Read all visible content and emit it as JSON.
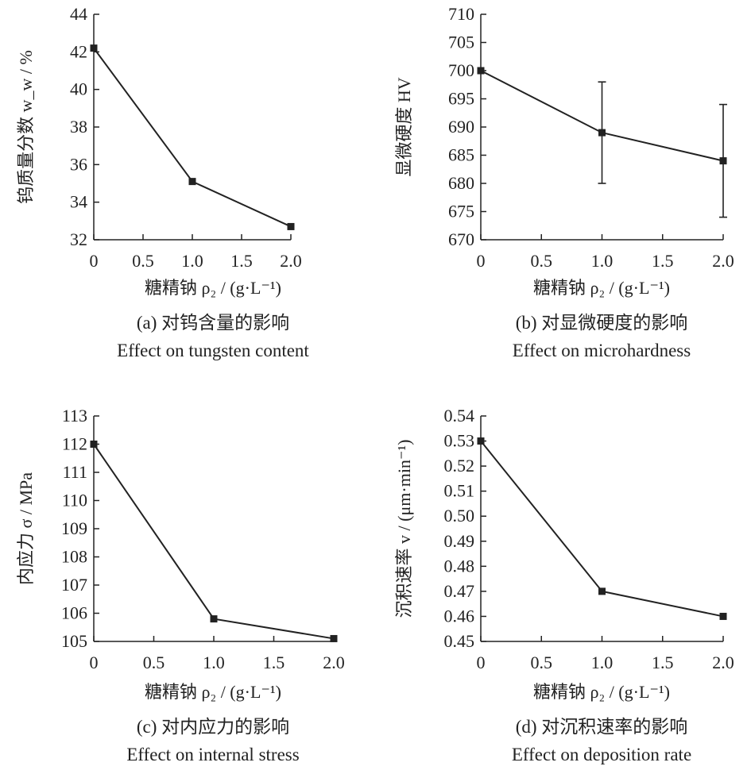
{
  "chart_data": [
    {
      "type": "line",
      "x": [
        0,
        1.0,
        2.0
      ],
      "values": [
        42.2,
        35.1,
        32.7
      ],
      "xlim": [
        0,
        2.0
      ],
      "ylim": [
        32,
        44
      ],
      "xticks": [
        "0",
        "0.5",
        "1.0",
        "1.5",
        "2.0"
      ],
      "yticks": [
        "32",
        "34",
        "36",
        "38",
        "40",
        "42",
        "44"
      ],
      "xlabel": "糖精钠 ρ₂ / (g·L⁻¹)",
      "ylabel": "钨质量分数 w_w / %",
      "caption_cn": "(a) 对钨含量的影响",
      "caption_en": "Effect on tungsten content",
      "grid": false
    },
    {
      "type": "line",
      "x": [
        0,
        1.0,
        2.0
      ],
      "values": [
        700,
        689,
        684
      ],
      "errors": [
        0,
        9,
        10
      ],
      "xlim": [
        0,
        2.0
      ],
      "ylim": [
        670,
        710
      ],
      "xticks": [
        "0",
        "0.5",
        "1.0",
        "1.5",
        "2.0"
      ],
      "yticks": [
        "670",
        "675",
        "680",
        "685",
        "690",
        "695",
        "700",
        "705",
        "710"
      ],
      "xlabel": "糖精钠 ρ₂ / (g·L⁻¹)",
      "ylabel": "显微硬度 HV",
      "caption_cn": "(b) 对显微硬度的影响",
      "caption_en": "Effect on microhardness",
      "grid": false
    },
    {
      "type": "line",
      "x": [
        0,
        1.0,
        2.0
      ],
      "values": [
        112.0,
        105.8,
        105.1
      ],
      "xlim": [
        0,
        2.0
      ],
      "ylim": [
        105,
        113
      ],
      "xticks": [
        "0",
        "0.5",
        "1.0",
        "1.5",
        "2.0"
      ],
      "yticks": [
        "105",
        "106",
        "107",
        "108",
        "109",
        "110",
        "111",
        "112",
        "113"
      ],
      "xlabel": "糖精钠 ρ₂ / (g·L⁻¹)",
      "ylabel": "内应力 σ / MPa",
      "caption_cn": "(c) 对内应力的影响",
      "caption_en": "Effect on internal stress",
      "grid": false
    },
    {
      "type": "line",
      "x": [
        0,
        1.0,
        2.0
      ],
      "values": [
        0.53,
        0.47,
        0.46
      ],
      "xlim": [
        0,
        2.0
      ],
      "ylim": [
        0.45,
        0.54
      ],
      "xticks": [
        "0",
        "0.5",
        "1.0",
        "1.5",
        "2.0"
      ],
      "yticks": [
        "0.45",
        "0.46",
        "0.47",
        "0.48",
        "0.49",
        "0.50",
        "0.51",
        "0.52",
        "0.53",
        "0.54"
      ],
      "xlabel": "糖精钠 ρ₂ / (g·L⁻¹)",
      "ylabel": "沉积速率 v / (μm·min⁻¹)",
      "caption_cn": "(d) 对沉积速率的影响",
      "caption_en": "Effect on deposition rate",
      "grid": false
    }
  ]
}
